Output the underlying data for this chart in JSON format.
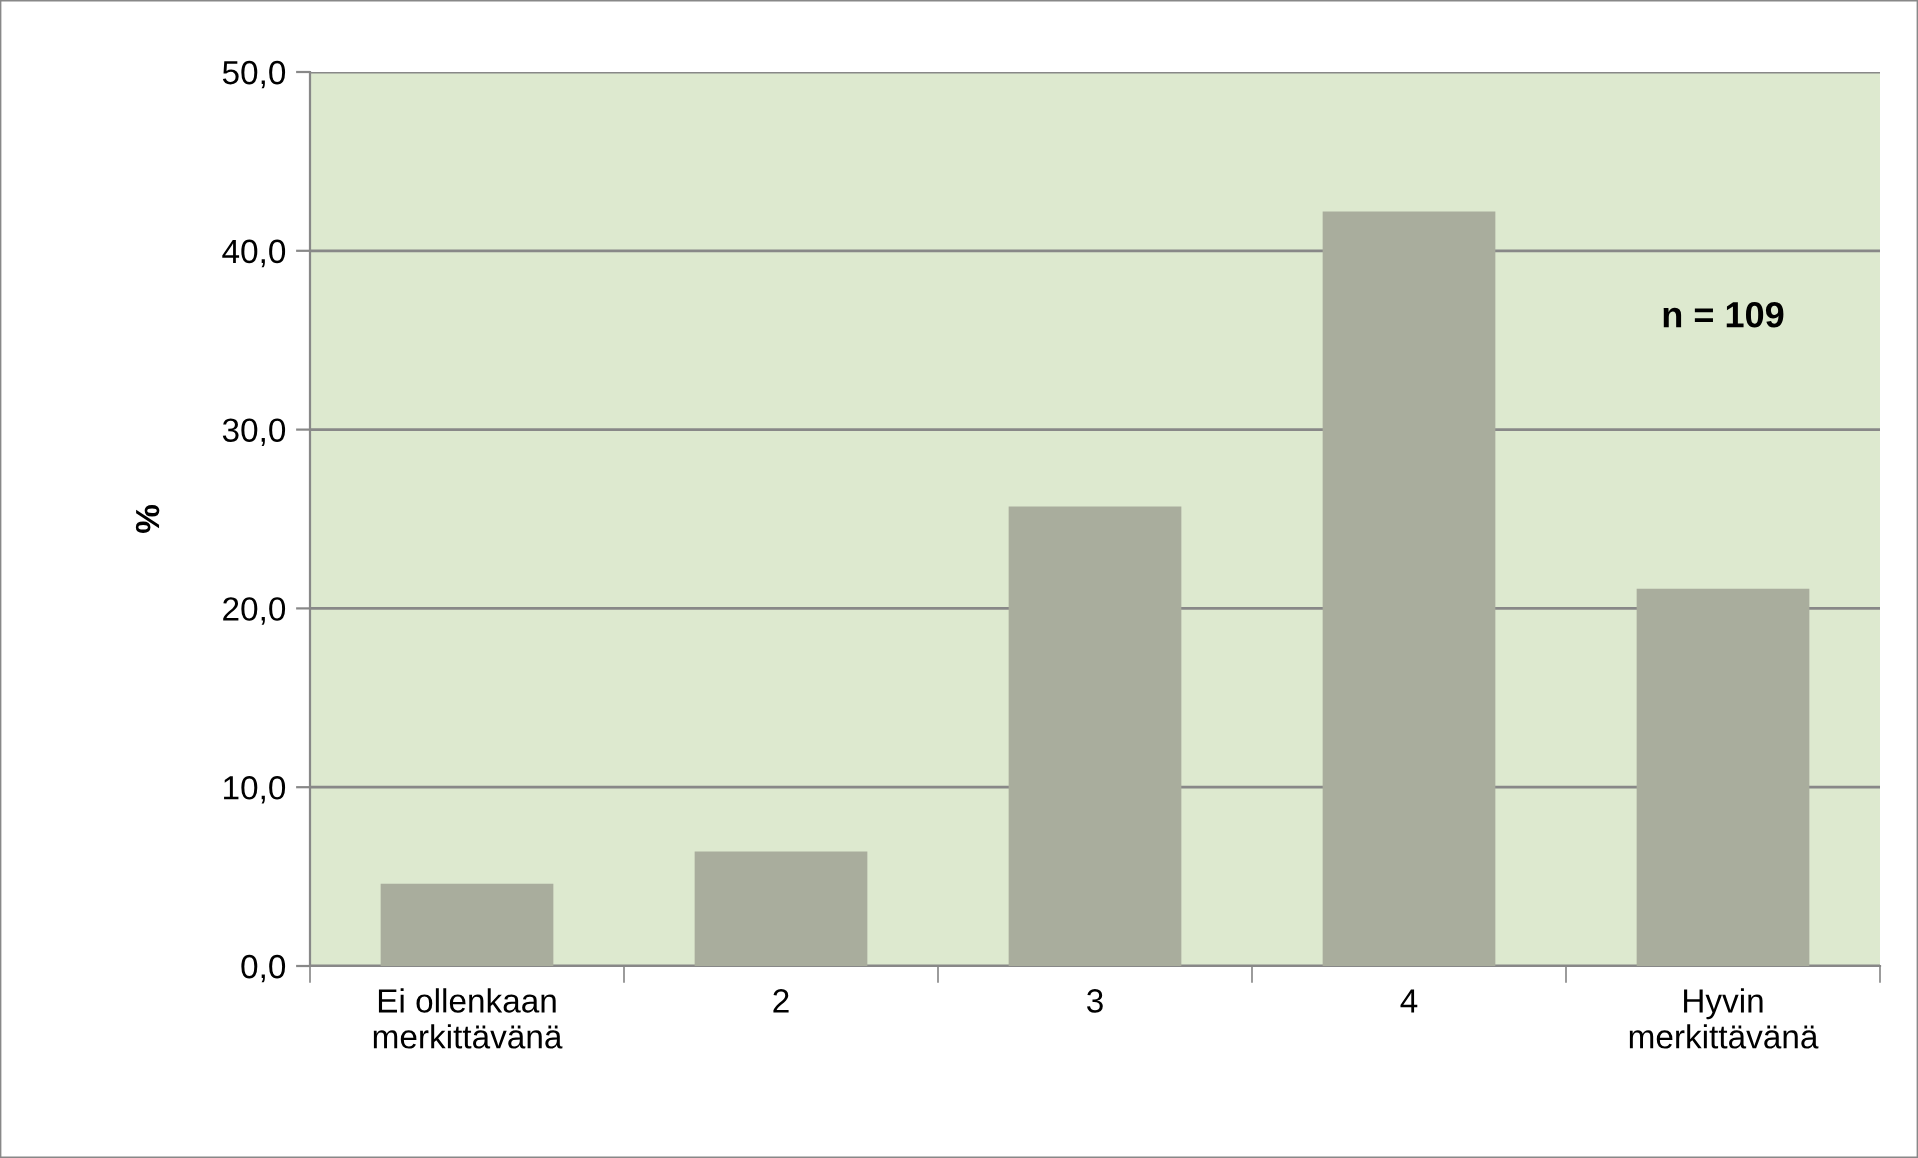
{
  "chart_data": {
    "type": "bar",
    "ylabel": "%",
    "categories": [
      "Ei ollenkaan\nmerkittävänä",
      "2",
      "3",
      "4",
      "Hyvin\nmerkittävänä"
    ],
    "values": [
      4.6,
      6.4,
      25.7,
      42.2,
      21.1
    ],
    "color": "#a9ad9d",
    "ylim": [
      0,
      50
    ],
    "yticks": [
      {
        "value": 0,
        "label": "0,0"
      },
      {
        "value": 10,
        "label": "10,0"
      },
      {
        "value": 20,
        "label": "20,0"
      },
      {
        "value": 30,
        "label": "30,0"
      },
      {
        "value": 40,
        "label": "40,0"
      },
      {
        "value": 50,
        "label": "50,0"
      }
    ],
    "grid": "y",
    "annotations": [
      "n = 109"
    ]
  }
}
